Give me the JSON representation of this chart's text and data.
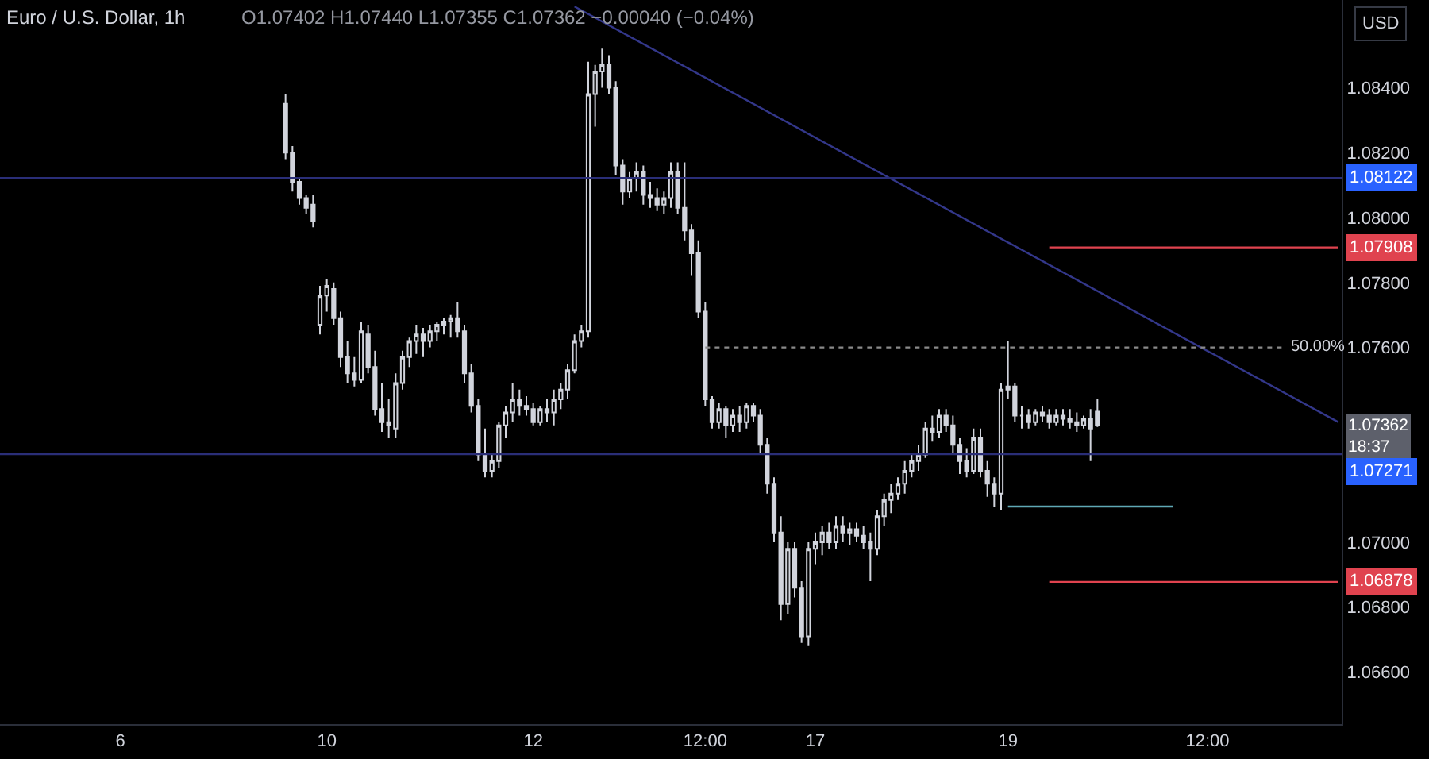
{
  "chart_data": {
    "type": "candlestick",
    "title": "Euro / U.S. Dollar, 1h",
    "subtitle": "O1.07402 H1.07440 L1.07355 C1.07362 −0.00040 (−0.04%)",
    "categories": [
      null,
      null,
      null,
      null,
      null,
      null,
      null,
      null,
      null,
      null,
      null,
      null,
      null,
      null,
      null,
      null,
      null,
      "6",
      null,
      null,
      null,
      null,
      null,
      null,
      null,
      null,
      null,
      null,
      null,
      null,
      null,
      null,
      null,
      null,
      null,
      null,
      null,
      null,
      null,
      null,
      null,
      null,
      null,
      null,
      null,
      null,
      null,
      "10",
      null,
      null,
      null,
      null,
      null,
      null,
      null,
      null,
      null,
      null,
      null,
      null,
      null,
      null,
      null,
      null,
      null,
      null,
      null,
      null,
      null,
      null,
      null,
      null,
      null,
      null,
      null,
      null,
      null,
      "12",
      null,
      null,
      null,
      null,
      null,
      null,
      null,
      null,
      null,
      null,
      null,
      null,
      null,
      null,
      null,
      null,
      null,
      null,
      null,
      null,
      null,
      null,
      null,
      null,
      "12:00",
      null,
      null,
      null,
      null,
      null,
      null,
      null,
      null,
      null,
      null,
      null,
      null,
      null,
      null,
      null,
      "17",
      null,
      null,
      null,
      null,
      null,
      null,
      null,
      null,
      null,
      null,
      null,
      null,
      null,
      null,
      null,
      null,
      null,
      null,
      null,
      null,
      null,
      null,
      null,
      null,
      null,
      null,
      null,
      "19",
      null,
      null,
      null,
      null,
      null,
      null,
      null,
      null,
      null,
      null,
      null,
      null,
      null,
      null,
      null,
      null,
      null,
      null,
      null,
      null,
      null,
      null,
      null,
      null,
      null,
      null,
      null,
      null,
      "12:00",
      null,
      null,
      null,
      null,
      null,
      null,
      null,
      null,
      null,
      null,
      null,
      null,
      null,
      null,
      null,
      null,
      null,
      null,
      null
    ],
    "ylim": [
      1.0644,
      1.0867
    ],
    "yticks": [
      {
        "value": 1.084,
        "label": "1.08400"
      },
      {
        "value": 1.082,
        "label": "1.08200"
      },
      {
        "value": 1.08,
        "label": "1.08000"
      },
      {
        "value": 1.078,
        "label": "1.07800"
      },
      {
        "value": 1.076,
        "label": "1.07600"
      },
      {
        "value": 1.07,
        "label": "1.07000"
      },
      {
        "value": 1.068,
        "label": "1.06800"
      },
      {
        "value": 1.066,
        "label": "1.06600"
      }
    ],
    "series": [
      {
        "color": "#d1d4dc",
        "ohlc": [
          null,
          null,
          null,
          null,
          null,
          null,
          null,
          null,
          null,
          null,
          null,
          null,
          null,
          null,
          null,
          null,
          null,
          null,
          null,
          null,
          null,
          null,
          null,
          null,
          null,
          null,
          null,
          null,
          null,
          null,
          null,
          null,
          null,
          null,
          null,
          null,
          null,
          null,
          null,
          null,
          null,
          [
            1.0835,
            1.0838,
            1.0818,
            1.082
          ],
          [
            1.082,
            1.0822,
            1.0808,
            1.0811
          ],
          [
            1.0811,
            1.0812,
            1.0804,
            1.0806
          ],
          [
            1.0806,
            1.0807,
            1.0801,
            1.0803
          ],
          [
            1.0804,
            1.0807,
            1.0797,
            1.0799
          ],
          [
            1.0767,
            1.0779,
            1.0764,
            1.0776
          ],
          [
            1.0776,
            1.0781,
            1.0771,
            1.0779
          ],
          [
            1.0778,
            1.078,
            1.0767,
            1.0769
          ],
          [
            1.0769,
            1.0771,
            1.0754,
            1.0757
          ],
          [
            1.0757,
            1.0762,
            1.0749,
            1.0752
          ],
          [
            1.0752,
            1.0757,
            1.0748,
            1.075
          ],
          [
            1.075,
            1.0768,
            1.0749,
            1.0765
          ],
          [
            1.0764,
            1.0767,
            1.0752,
            1.0754
          ],
          [
            1.0754,
            1.0759,
            1.0739,
            1.0741
          ],
          [
            1.0741,
            1.0749,
            1.0734,
            1.0737
          ],
          [
            1.0737,
            1.0744,
            1.0732,
            1.0736
          ],
          [
            1.0735,
            1.0752,
            1.0732,
            1.0749
          ],
          [
            1.0749,
            1.0759,
            1.0747,
            1.0757
          ],
          [
            1.0757,
            1.0763,
            1.0754,
            1.0762
          ],
          [
            1.0762,
            1.0767,
            1.0758,
            1.0764
          ],
          [
            1.0764,
            1.0766,
            1.0757,
            1.0762
          ],
          [
            1.0762,
            1.0767,
            1.076,
            1.0765
          ],
          [
            1.0765,
            1.0768,
            1.0762,
            1.0767
          ],
          [
            1.0767,
            1.0769,
            1.0764,
            1.0768
          ],
          [
            1.0768,
            1.077,
            1.0763,
            1.0769
          ],
          [
            1.0769,
            1.0774,
            1.0763,
            1.0765
          ],
          [
            1.0765,
            1.0767,
            1.0749,
            1.0752
          ],
          [
            1.0752,
            1.0755,
            1.074,
            1.0742
          ],
          [
            1.0742,
            1.0744,
            1.0725,
            1.0727
          ],
          [
            1.0727,
            1.0735,
            1.072,
            1.0722
          ],
          [
            1.0722,
            1.0727,
            1.072,
            1.0725
          ],
          [
            1.0725,
            1.0737,
            1.0723,
            1.0736
          ],
          [
            1.0736,
            1.0742,
            1.0732,
            1.074
          ],
          [
            1.074,
            1.0749,
            1.0737,
            1.0744
          ],
          [
            1.0744,
            1.0747,
            1.0739,
            1.0742
          ],
          [
            1.0742,
            1.0745,
            1.0739,
            1.0741
          ],
          [
            1.0741,
            1.0743,
            1.0736,
            1.0737
          ],
          [
            1.0737,
            1.0742,
            1.0736,
            1.0741
          ],
          [
            1.0741,
            1.0744,
            1.0737,
            1.074
          ],
          [
            1.074,
            1.0747,
            1.0736,
            1.0744
          ],
          [
            1.0744,
            1.0749,
            1.0741,
            1.0747
          ],
          [
            1.0747,
            1.0755,
            1.0744,
            1.0753
          ],
          [
            1.0753,
            1.0764,
            1.0752,
            1.0762
          ],
          [
            1.0762,
            1.0767,
            1.076,
            1.0765
          ],
          [
            1.0765,
            1.0848,
            1.0763,
            1.0838
          ],
          [
            1.0838,
            1.0847,
            1.0828,
            1.0845
          ],
          [
            1.0845,
            1.0852,
            1.084,
            1.0847
          ],
          [
            1.0847,
            1.085,
            1.0838,
            1.084
          ],
          [
            1.084,
            1.0842,
            1.0813,
            1.0816
          ],
          [
            1.0816,
            1.0818,
            1.0804,
            1.0808
          ],
          [
            1.0808,
            1.0814,
            1.0806,
            1.0812
          ],
          [
            1.0812,
            1.0817,
            1.0808,
            1.0814
          ],
          [
            1.0814,
            1.0816,
            1.0804,
            1.0807
          ],
          [
            1.0807,
            1.0811,
            1.0803,
            1.0806
          ],
          [
            1.0806,
            1.0809,
            1.0802,
            1.0804
          ],
          [
            1.0804,
            1.0808,
            1.0801,
            1.0806
          ],
          [
            1.0806,
            1.0817,
            1.0803,
            1.0814
          ],
          [
            1.0814,
            1.0817,
            1.0801,
            1.0803
          ],
          [
            1.0803,
            1.0817,
            1.0793,
            1.0796
          ],
          [
            1.0796,
            1.0798,
            1.0782,
            1.0789
          ],
          [
            1.0789,
            1.0793,
            1.0769,
            1.0771
          ],
          [
            1.0771,
            1.0774,
            1.0742,
            1.0744
          ],
          [
            1.0744,
            1.0745,
            1.0735,
            1.0737
          ],
          [
            1.0737,
            1.0743,
            1.0735,
            1.0741
          ],
          [
            1.0741,
            1.0742,
            1.0732,
            1.0736
          ],
          [
            1.0736,
            1.0741,
            1.0734,
            1.0739
          ],
          [
            1.0739,
            1.0742,
            1.0734,
            1.0737
          ],
          [
            1.0737,
            1.0743,
            1.0735,
            1.0742
          ],
          [
            1.0742,
            1.0743,
            1.0737,
            1.0739
          ],
          [
            1.0739,
            1.0741,
            1.0727,
            1.073
          ],
          [
            1.073,
            1.0732,
            1.0715,
            1.0718
          ],
          [
            1.0718,
            1.072,
            1.07,
            1.0703
          ],
          [
            1.0703,
            1.0708,
            1.0676,
            1.0681
          ],
          [
            1.0681,
            1.07,
            1.0678,
            1.0698
          ],
          [
            1.0698,
            1.07,
            1.0683,
            1.0686
          ],
          [
            1.0686,
            1.0688,
            1.0669,
            1.0671
          ],
          [
            1.0671,
            1.07,
            1.0668,
            1.0698
          ],
          [
            1.0698,
            1.0703,
            1.0693,
            1.07
          ],
          [
            1.07,
            1.0705,
            1.0696,
            1.0703
          ],
          [
            1.0703,
            1.0706,
            1.0698,
            1.07
          ],
          [
            1.07,
            1.0708,
            1.0698,
            1.0705
          ],
          [
            1.0705,
            1.0708,
            1.07,
            1.0703
          ],
          [
            1.0703,
            1.0706,
            1.0699,
            1.0704
          ],
          [
            1.0704,
            1.0706,
            1.07,
            1.0702
          ],
          [
            1.0702,
            1.0705,
            1.0698,
            1.07
          ],
          [
            1.07,
            1.0703,
            1.0688,
            1.0698
          ],
          [
            1.0698,
            1.071,
            1.0696,
            1.0708
          ],
          [
            1.0708,
            1.0715,
            1.0705,
            1.0713
          ],
          [
            1.0713,
            1.0718,
            1.0709,
            1.0715
          ],
          [
            1.0715,
            1.072,
            1.0713,
            1.0718
          ],
          [
            1.0718,
            1.0725,
            1.0715,
            1.0722
          ],
          [
            1.0722,
            1.0727,
            1.072,
            1.0725
          ],
          [
            1.0725,
            1.073,
            1.0722,
            1.0727
          ],
          [
            1.0727,
            1.0737,
            1.0726,
            1.0735
          ],
          [
            1.0735,
            1.0739,
            1.0731,
            1.0734
          ],
          [
            1.0734,
            1.0741,
            1.0732,
            1.0739
          ],
          [
            1.0739,
            1.0741,
            1.0734,
            1.0736
          ],
          [
            1.0736,
            1.0739,
            1.0727,
            1.073
          ],
          [
            1.073,
            1.0732,
            1.0721,
            1.0725
          ],
          [
            1.0725,
            1.0729,
            1.072,
            1.0722
          ],
          [
            1.0722,
            1.0735,
            1.0721,
            1.0732
          ],
          [
            1.0732,
            1.0735,
            1.072,
            1.0722
          ],
          [
            1.0722,
            1.0725,
            1.0714,
            1.0718
          ],
          [
            1.0718,
            1.072,
            1.0711,
            1.0715
          ],
          [
            1.0715,
            1.0749,
            1.071,
            1.0747
          ],
          [
            1.0747,
            1.0762,
            1.0744,
            1.0748
          ],
          [
            1.0748,
            1.0749,
            1.0737,
            1.0739
          ],
          [
            1.0739,
            1.0742,
            1.0735,
            1.0739
          ],
          [
            1.0739,
            1.0741,
            1.0735,
            1.0737
          ],
          [
            1.0737,
            1.0741,
            1.0736,
            1.074
          ],
          [
            1.074,
            1.0742,
            1.0737,
            1.0739
          ],
          [
            1.0739,
            1.0741,
            1.0735,
            1.0737
          ],
          [
            1.0737,
            1.0741,
            1.0736,
            1.0739
          ],
          [
            1.0739,
            1.0741,
            1.0736,
            1.0738
          ],
          [
            1.0738,
            1.0741,
            1.0735,
            1.0737
          ],
          [
            1.0737,
            1.074,
            1.0734,
            1.0736
          ],
          [
            1.0736,
            1.0739,
            1.0735,
            1.0738
          ],
          [
            1.0738,
            1.0741,
            1.0725,
            1.0735
          ],
          [
            1.07402,
            1.0744,
            1.07355,
            1.07362
          ],
          null,
          null,
          null,
          null,
          null,
          null,
          null,
          null,
          null,
          null,
          null,
          null,
          null,
          null,
          null,
          null,
          null,
          null,
          null,
          null,
          null,
          null,
          null,
          null,
          null,
          null,
          null,
          null,
          null,
          null,
          null,
          null,
          null,
          null,
          null
        ]
      },
      {
        "type": "line",
        "color": "#33378a",
        "values": [
          null,
          null,
          null,
          null,
          null,
          null,
          null,
          null,
          null,
          null,
          null,
          null,
          null,
          null,
          null,
          null,
          null,
          null,
          null,
          null,
          null,
          null,
          null,
          null,
          null,
          null,
          null,
          null,
          null,
          null,
          null,
          null,
          null,
          null,
          null,
          null,
          null,
          null,
          null,
          null,
          null,
          null,
          null,
          null,
          null,
          null,
          null,
          null,
          null,
          null,
          null,
          null,
          null,
          null,
          null,
          null,
          null,
          null,
          null,
          null,
          null,
          null,
          null,
          null,
          null,
          null,
          null,
          null,
          null,
          null,
          null,
          null,
          null,
          null,
          null,
          null,
          null,
          null,
          null,
          null,
          null,
          null,
          null,
          1.0865,
          null,
          null,
          null,
          null,
          null,
          null,
          null,
          null,
          null,
          null,
          null,
          null,
          null,
          null,
          null,
          null,
          null,
          null,
          null,
          null,
          null,
          null,
          null,
          null,
          null,
          null,
          null,
          null,
          null,
          null,
          null,
          null,
          null,
          null,
          null,
          null,
          null,
          null,
          null,
          null,
          null,
          null,
          null,
          null,
          null,
          null,
          null,
          null,
          null,
          null,
          null,
          null,
          null,
          null,
          null,
          null,
          null,
          null,
          null,
          null,
          null,
          null,
          null,
          null,
          null,
          null,
          null,
          null,
          null,
          null,
          null,
          null,
          null,
          null,
          null,
          null,
          null,
          null,
          null,
          null,
          null,
          null,
          null,
          null,
          null,
          null,
          null,
          null,
          null,
          null,
          null,
          null,
          null,
          null,
          null,
          null,
          null,
          null,
          null,
          null,
          null,
          null,
          null,
          null,
          null,
          null,
          null,
          null,
          null,
          null,
          1.0737
        ]
      },
      {
        "type": "line",
        "name": "1.07908",
        "color": "#e0434f",
        "values": [
          null,
          null,
          null,
          null,
          null,
          null,
          null,
          null,
          null,
          null,
          null,
          null,
          null,
          null,
          null,
          null,
          null,
          null,
          null,
          null,
          null,
          null,
          null,
          null,
          null,
          null,
          null,
          null,
          null,
          null,
          null,
          null,
          null,
          null,
          null,
          null,
          null,
          null,
          null,
          null,
          null,
          null,
          null,
          null,
          null,
          null,
          null,
          null,
          null,
          null,
          null,
          null,
          null,
          null,
          null,
          null,
          null,
          null,
          null,
          null,
          null,
          null,
          null,
          null,
          null,
          null,
          null,
          null,
          null,
          null,
          null,
          null,
          null,
          null,
          null,
          null,
          null,
          null,
          null,
          null,
          null,
          null,
          null,
          null,
          null,
          null,
          null,
          null,
          null,
          null,
          null,
          null,
          null,
          null,
          null,
          null,
          null,
          null,
          null,
          null,
          null,
          null,
          null,
          null,
          null,
          null,
          null,
          null,
          null,
          null,
          null,
          null,
          null,
          null,
          null,
          null,
          null,
          null,
          null,
          null,
          null,
          null,
          null,
          null,
          null,
          null,
          null,
          null,
          null,
          null,
          null,
          null,
          null,
          null,
          null,
          null,
          null,
          null,
          null,
          null,
          null,
          null,
          null,
          null,
          null,
          null,
          null,
          null,
          null,
          null,
          null,
          null,
          1.07908,
          null,
          null,
          null,
          null,
          null,
          null,
          null,
          null,
          null,
          null,
          null,
          null,
          null,
          null,
          null,
          null,
          null,
          null,
          null,
          null,
          null,
          null,
          null,
          null,
          null,
          null,
          null,
          null,
          null,
          null,
          null,
          null,
          null,
          null,
          null,
          null,
          null,
          null,
          null,
          null,
          null,
          1.07908
        ]
      },
      {
        "type": "line",
        "name": "1.06878",
        "color": "#e0434f",
        "values": [
          null,
          null,
          null,
          null,
          null,
          null,
          null,
          null,
          null,
          null,
          null,
          null,
          null,
          null,
          null,
          null,
          null,
          null,
          null,
          null,
          null,
          null,
          null,
          null,
          null,
          null,
          null,
          null,
          null,
          null,
          null,
          null,
          null,
          null,
          null,
          null,
          null,
          null,
          null,
          null,
          null,
          null,
          null,
          null,
          null,
          null,
          null,
          null,
          null,
          null,
          null,
          null,
          null,
          null,
          null,
          null,
          null,
          null,
          null,
          null,
          null,
          null,
          null,
          null,
          null,
          null,
          null,
          null,
          null,
          null,
          null,
          null,
          null,
          null,
          null,
          null,
          null,
          null,
          null,
          null,
          null,
          null,
          null,
          null,
          null,
          null,
          null,
          null,
          null,
          null,
          null,
          null,
          null,
          null,
          null,
          null,
          null,
          null,
          null,
          null,
          null,
          null,
          null,
          null,
          null,
          null,
          null,
          null,
          null,
          null,
          null,
          null,
          null,
          null,
          null,
          null,
          null,
          null,
          null,
          null,
          null,
          null,
          null,
          null,
          null,
          null,
          null,
          null,
          null,
          null,
          null,
          null,
          null,
          null,
          null,
          null,
          null,
          null,
          null,
          null,
          null,
          null,
          null,
          null,
          null,
          null,
          null,
          null,
          null,
          null,
          null,
          null,
          1.06878,
          null,
          null,
          null,
          null,
          null,
          null,
          null,
          null,
          null,
          null,
          null,
          null,
          null,
          null,
          null,
          null,
          null,
          null,
          null,
          null,
          null,
          null,
          null,
          null,
          null,
          null,
          null,
          null,
          null,
          null,
          null,
          null,
          null,
          null,
          null,
          null,
          null,
          null,
          null,
          null,
          null,
          1.06878
        ]
      },
      {
        "type": "line",
        "color": "#5fa8b5",
        "values": [
          null,
          null,
          null,
          null,
          null,
          null,
          null,
          null,
          null,
          null,
          null,
          null,
          null,
          null,
          null,
          null,
          null,
          null,
          null,
          null,
          null,
          null,
          null,
          null,
          null,
          null,
          null,
          null,
          null,
          null,
          null,
          null,
          null,
          null,
          null,
          null,
          null,
          null,
          null,
          null,
          null,
          null,
          null,
          null,
          null,
          null,
          null,
          null,
          null,
          null,
          null,
          null,
          null,
          null,
          null,
          null,
          null,
          null,
          null,
          null,
          null,
          null,
          null,
          null,
          null,
          null,
          null,
          null,
          null,
          null,
          null,
          null,
          null,
          null,
          null,
          null,
          null,
          null,
          null,
          null,
          null,
          null,
          null,
          null,
          null,
          null,
          null,
          null,
          null,
          null,
          null,
          null,
          null,
          null,
          null,
          null,
          null,
          null,
          null,
          null,
          null,
          null,
          null,
          null,
          null,
          null,
          null,
          null,
          null,
          null,
          null,
          null,
          null,
          null,
          null,
          null,
          null,
          null,
          null,
          null,
          null,
          null,
          null,
          null,
          null,
          null,
          null,
          null,
          null,
          null,
          null,
          null,
          null,
          null,
          null,
          null,
          null,
          null,
          null,
          null,
          null,
          null,
          null,
          null,
          null,
          null,
          1.0711,
          null,
          null,
          null,
          null,
          null,
          null,
          null,
          null,
          null,
          null,
          null,
          null,
          null,
          null,
          null,
          null,
          null,
          null,
          null,
          null,
          null,
          null,
          null,
          1.0711,
          null,
          null,
          null,
          null,
          null,
          null,
          null,
          null,
          null,
          null,
          null,
          null,
          null,
          null,
          null,
          null,
          null,
          null,
          null,
          null,
          null,
          null,
          null,
          null
        ]
      },
      {
        "type": "line",
        "name": "50.00%",
        "color": "#8a8a8a",
        "line_style": "dotted",
        "values": [
          null,
          null,
          null,
          null,
          null,
          null,
          null,
          null,
          null,
          null,
          null,
          null,
          null,
          null,
          null,
          null,
          null,
          null,
          null,
          null,
          null,
          null,
          null,
          null,
          null,
          null,
          null,
          null,
          null,
          null,
          null,
          null,
          null,
          null,
          null,
          null,
          null,
          null,
          null,
          null,
          null,
          null,
          null,
          null,
          null,
          null,
          null,
          null,
          null,
          null,
          null,
          null,
          null,
          null,
          null,
          null,
          null,
          null,
          null,
          null,
          null,
          null,
          null,
          null,
          null,
          null,
          null,
          null,
          null,
          null,
          null,
          null,
          null,
          null,
          null,
          null,
          null,
          null,
          null,
          null,
          null,
          null,
          null,
          null,
          null,
          null,
          null,
          null,
          null,
          null,
          null,
          null,
          null,
          null,
          null,
          null,
          null,
          null,
          null,
          null,
          null,
          null,
          1.076,
          null,
          null,
          null,
          null,
          null,
          null,
          null,
          null,
          null,
          null,
          null,
          null,
          null,
          null,
          null,
          null,
          null,
          null,
          null,
          null,
          null,
          null,
          null,
          null,
          null,
          null,
          null,
          null,
          null,
          null,
          null,
          null,
          null,
          null,
          null,
          null,
          null,
          null,
          null,
          null,
          null,
          null,
          null,
          null,
          null,
          null,
          null,
          null,
          null,
          null,
          null,
          null,
          null,
          null,
          null,
          null,
          null,
          null,
          null,
          null,
          null,
          null,
          null,
          null,
          null,
          null,
          null,
          null,
          null,
          null,
          null,
          null,
          null,
          null,
          null,
          null,
          null,
          null,
          null,
          null,
          null,
          null,
          null,
          1.076,
          null,
          null,
          null,
          null,
          null,
          null,
          null,
          null
        ]
      }
    ],
    "ref_lines": [
      {
        "axis": "y",
        "value": 1.08122,
        "label": "1.08122",
        "color": "#2a2e78"
      },
      {
        "axis": "y",
        "value": 1.07271,
        "label": "1.07271",
        "color": "#2a2e78"
      }
    ],
    "annotations": [
      "USD",
      "1.07362\n18:37"
    ],
    "grid": false,
    "legend": false
  }
}
